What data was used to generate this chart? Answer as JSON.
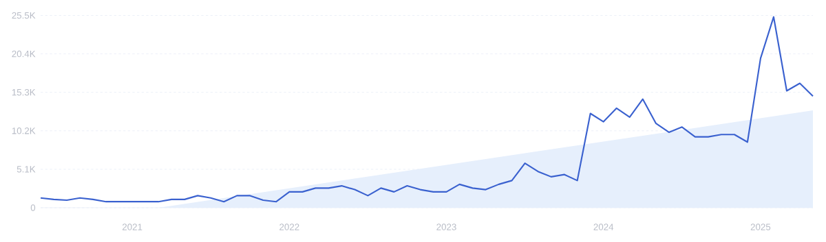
{
  "chart_data": {
    "type": "line",
    "x": [
      "2020-06",
      "2020-07",
      "2020-08",
      "2020-09",
      "2020-10",
      "2020-11",
      "2020-12",
      "2021-01",
      "2021-02",
      "2021-03",
      "2021-04",
      "2021-05",
      "2021-06",
      "2021-07",
      "2021-08",
      "2021-09",
      "2021-10",
      "2021-11",
      "2021-12",
      "2022-01",
      "2022-02",
      "2022-03",
      "2022-04",
      "2022-05",
      "2022-06",
      "2022-07",
      "2022-08",
      "2022-09",
      "2022-10",
      "2022-11",
      "2022-12",
      "2023-01",
      "2023-02",
      "2023-03",
      "2023-04",
      "2023-05",
      "2023-06",
      "2023-07",
      "2023-08",
      "2023-09",
      "2023-10",
      "2023-11",
      "2023-12",
      "2024-01",
      "2024-02",
      "2024-03",
      "2024-04",
      "2024-05",
      "2024-06",
      "2024-07",
      "2024-08",
      "2024-09",
      "2024-10",
      "2024-11",
      "2024-12",
      "2025-01",
      "2025-02",
      "2025-03",
      "2025-04",
      "2025-05"
    ],
    "series": [
      {
        "type": "area",
        "x": [
          "2021-03",
          "2025-05"
        ],
        "values": [
          0,
          12900
        ],
        "color": "#e6effc"
      },
      {
        "color": "#3a61cf",
        "values": [
          1300,
          1100,
          1000,
          1300,
          1100,
          800,
          800,
          800,
          800,
          800,
          1100,
          1100,
          1600,
          1300,
          800,
          1600,
          1600,
          1000,
          800,
          2100,
          2100,
          2600,
          2600,
          2900,
          2400,
          1600,
          2600,
          2100,
          2900,
          2400,
          2100,
          2100,
          3100,
          2600,
          2400,
          3100,
          3600,
          5900,
          4800,
          4100,
          4400,
          3600,
          12500,
          11400,
          13200,
          12000,
          14400,
          11200,
          10000,
          10700,
          9400,
          9400,
          9700,
          9700,
          8700,
          19800,
          25300,
          15500,
          16500,
          14800
        ]
      }
    ],
    "xlim": [
      "2020-06",
      "2025-05"
    ],
    "xticks": [
      {
        "value": "2021",
        "label": "2021"
      },
      {
        "value": "2022",
        "label": "2022"
      },
      {
        "value": "2023",
        "label": "2023"
      },
      {
        "value": "2024",
        "label": "2024"
      },
      {
        "value": "2025",
        "label": "2025"
      }
    ],
    "ylim": [
      0,
      25500
    ],
    "yticks": [
      0,
      {
        "value": 5100,
        "label": "5.1K"
      },
      {
        "value": 10200,
        "label": "10.2K"
      },
      {
        "value": 15300,
        "label": "15.3K"
      },
      {
        "value": 20400,
        "label": "20.4K"
      },
      {
        "value": 25500,
        "label": "25.5K"
      }
    ],
    "grid": "y"
  }
}
